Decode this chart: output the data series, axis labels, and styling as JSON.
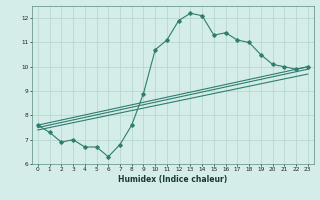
{
  "xlabel": "Humidex (Indice chaleur)",
  "ylabel": "",
  "bg_color": "#d4ede9",
  "grid_color": "#b8d8d4",
  "line_color": "#2e7d6e",
  "xlim": [
    -0.5,
    23.5
  ],
  "ylim": [
    6,
    12.5
  ],
  "ytick_values": [
    6,
    7,
    8,
    9,
    10,
    11,
    12
  ],
  "curve1_x": [
    0,
    1,
    2,
    3,
    4,
    5,
    6,
    7,
    8,
    9,
    10,
    11,
    12,
    13,
    14,
    15,
    16,
    17,
    18,
    19,
    20,
    21,
    22,
    23
  ],
  "curve1_y": [
    7.6,
    7.3,
    6.9,
    7.0,
    6.7,
    6.7,
    6.3,
    6.8,
    7.6,
    8.9,
    10.7,
    11.1,
    11.9,
    12.2,
    12.1,
    11.3,
    11.4,
    11.1,
    11.0,
    10.5,
    10.1,
    10.0,
    9.9,
    10.0
  ],
  "line1_x": [
    0,
    23
  ],
  "line1_y": [
    7.6,
    10.0
  ],
  "line2_x": [
    0,
    23
  ],
  "line2_y": [
    7.5,
    9.9
  ],
  "line3_x": [
    0,
    23
  ],
  "line3_y": [
    7.4,
    9.7
  ]
}
